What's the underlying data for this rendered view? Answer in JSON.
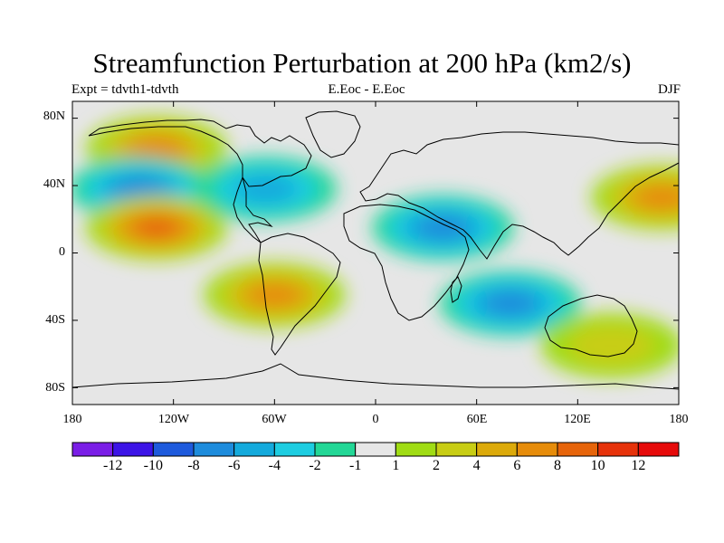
{
  "title": "Streamfunction Perturbation at 200 hPa (km2/s)",
  "subtitle_left": "Expt = tdvth1-tdvth",
  "subtitle_center": "E.Eoc - E.Eoc",
  "subtitle_right": "DJF",
  "lat_labels": [
    "80N",
    "40N",
    "0",
    "40S",
    "80S"
  ],
  "lon_labels": [
    "180",
    "120W",
    "60W",
    "0",
    "60E",
    "120E",
    "180"
  ],
  "colorbar": {
    "labels": [
      "-12",
      "-10",
      "-8",
      "-6",
      "-4",
      "-2",
      "-1",
      "1",
      "2",
      "4",
      "6",
      "8",
      "10",
      "12"
    ],
    "colors": [
      "#7a1ee6",
      "#3c14e6",
      "#1e5adc",
      "#1e8cdc",
      "#14aadc",
      "#1ecde1",
      "#23d796",
      "#e6e6e6",
      "#a0dc14",
      "#c8cd14",
      "#dcaa0a",
      "#e68c0a",
      "#e6640a",
      "#e6320a",
      "#e60a0a"
    ]
  },
  "chart_data": {
    "type": "heatmap",
    "projection": "cylindrical equidistant",
    "lon_range": [
      -180,
      180
    ],
    "lat_range": [
      -90,
      90
    ],
    "contour_levels": [
      -12,
      -10,
      -8,
      -6,
      -4,
      -2,
      -1,
      1,
      2,
      4,
      6,
      8,
      10,
      12
    ],
    "units": "km2/s",
    "features": [
      {
        "lon": -130,
        "lat": 62,
        "value": 7
      },
      {
        "lon": -140,
        "lat": 38,
        "value": -7
      },
      {
        "lon": -130,
        "lat": 15,
        "value": 9
      },
      {
        "lon": -65,
        "lat": 38,
        "value": -5
      },
      {
        "lon": -60,
        "lat": -25,
        "value": 6
      },
      {
        "lon": 40,
        "lat": 15,
        "value": -6
      },
      {
        "lon": 80,
        "lat": -30,
        "value": -6
      },
      {
        "lon": 170,
        "lat": 33,
        "value": 7
      },
      {
        "lon": 140,
        "lat": -55,
        "value": 2
      }
    ]
  }
}
